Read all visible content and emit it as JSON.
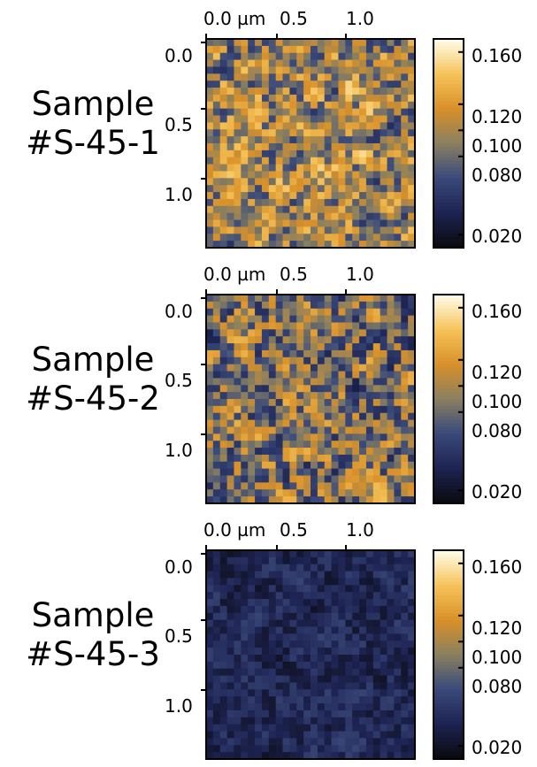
{
  "chart_data": [
    {
      "type": "heatmap",
      "label": [
        "Sample",
        "#S-45-1"
      ],
      "grid": [
        30,
        30
      ],
      "level": 0.55,
      "seed": 11,
      "xticks": [
        "0.0 µm",
        "0.5",
        "1.0"
      ],
      "yticks": [
        "0.0",
        "0.5",
        "1.0"
      ],
      "colorbar_ticks": [
        "0.160",
        "0.120",
        "0.100",
        "0.080",
        "0.020"
      ],
      "colorbar_values": [
        0.16,
        0.12,
        0.1,
        0.08,
        0.02
      ],
      "colorbar_range": [
        0.01,
        0.17
      ]
    },
    {
      "type": "heatmap",
      "label": [
        "Sample",
        "#S-45-2"
      ],
      "grid": [
        30,
        30
      ],
      "level": 0.48,
      "seed": 23,
      "xticks": [
        "0.0 µm",
        "0.5",
        "1.0"
      ],
      "yticks": [
        "0.0",
        "0.5",
        "1.0"
      ],
      "colorbar_ticks": [
        "0.160",
        "0.120",
        "0.100",
        "0.080",
        "0.020"
      ],
      "colorbar_values": [
        0.16,
        0.12,
        0.1,
        0.08,
        0.02
      ],
      "colorbar_range": [
        0.01,
        0.17
      ]
    },
    {
      "type": "heatmap",
      "label": [
        "Sample",
        "#S-45-3"
      ],
      "grid": [
        30,
        30
      ],
      "level": 0.18,
      "seed": 37,
      "xticks": [
        "0.0 µm",
        "0.5",
        "1.0"
      ],
      "yticks": [
        "0.0",
        "0.5",
        "1.0"
      ],
      "colorbar_ticks": [
        "0.160",
        "0.120",
        "0.100",
        "0.080",
        "0.020"
      ],
      "colorbar_values": [
        0.16,
        0.12,
        0.1,
        0.08,
        0.02
      ],
      "colorbar_range": [
        0.01,
        0.17
      ]
    }
  ],
  "colormap": [
    "#0a0b10",
    "#1e2454",
    "#3a4a7a",
    "#8a8060",
    "#d8902a",
    "#f5c257",
    "#fffbe6"
  ]
}
